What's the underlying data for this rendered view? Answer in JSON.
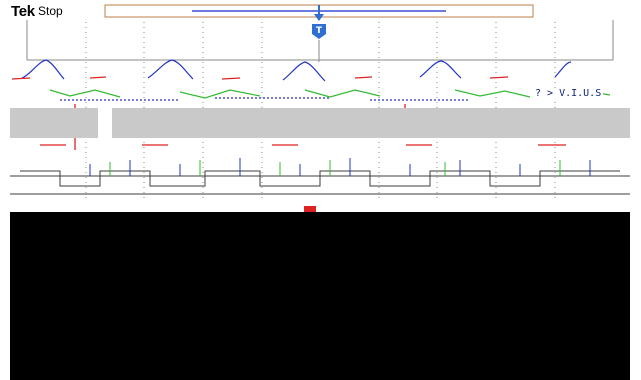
{
  "header": {
    "brand": "Tek",
    "acquisition_state": "Stop"
  },
  "screen": {
    "readout_fragment": "? > V.I.U.S"
  },
  "colors": {
    "background": "#ffffff",
    "record_bar_border": "#b87f4a",
    "record_bar_line": "#3a4fd6",
    "trigger_marker": "#2f6fd1",
    "graticule": "#8a8a8a",
    "channel_blue": "#2233cc",
    "channel_red": "#dd2222",
    "channel_green": "#33bb33",
    "gray_band": "#c9c9c9",
    "blank_area": "#000000"
  },
  "icons": {
    "trigger_position": "trigger-position-icon",
    "trigger_t": "trigger-t-icon"
  },
  "record_view": {
    "visible_fraction_start": 0.23,
    "visible_fraction_end": 0.74,
    "trigger_fraction": 0.48
  }
}
